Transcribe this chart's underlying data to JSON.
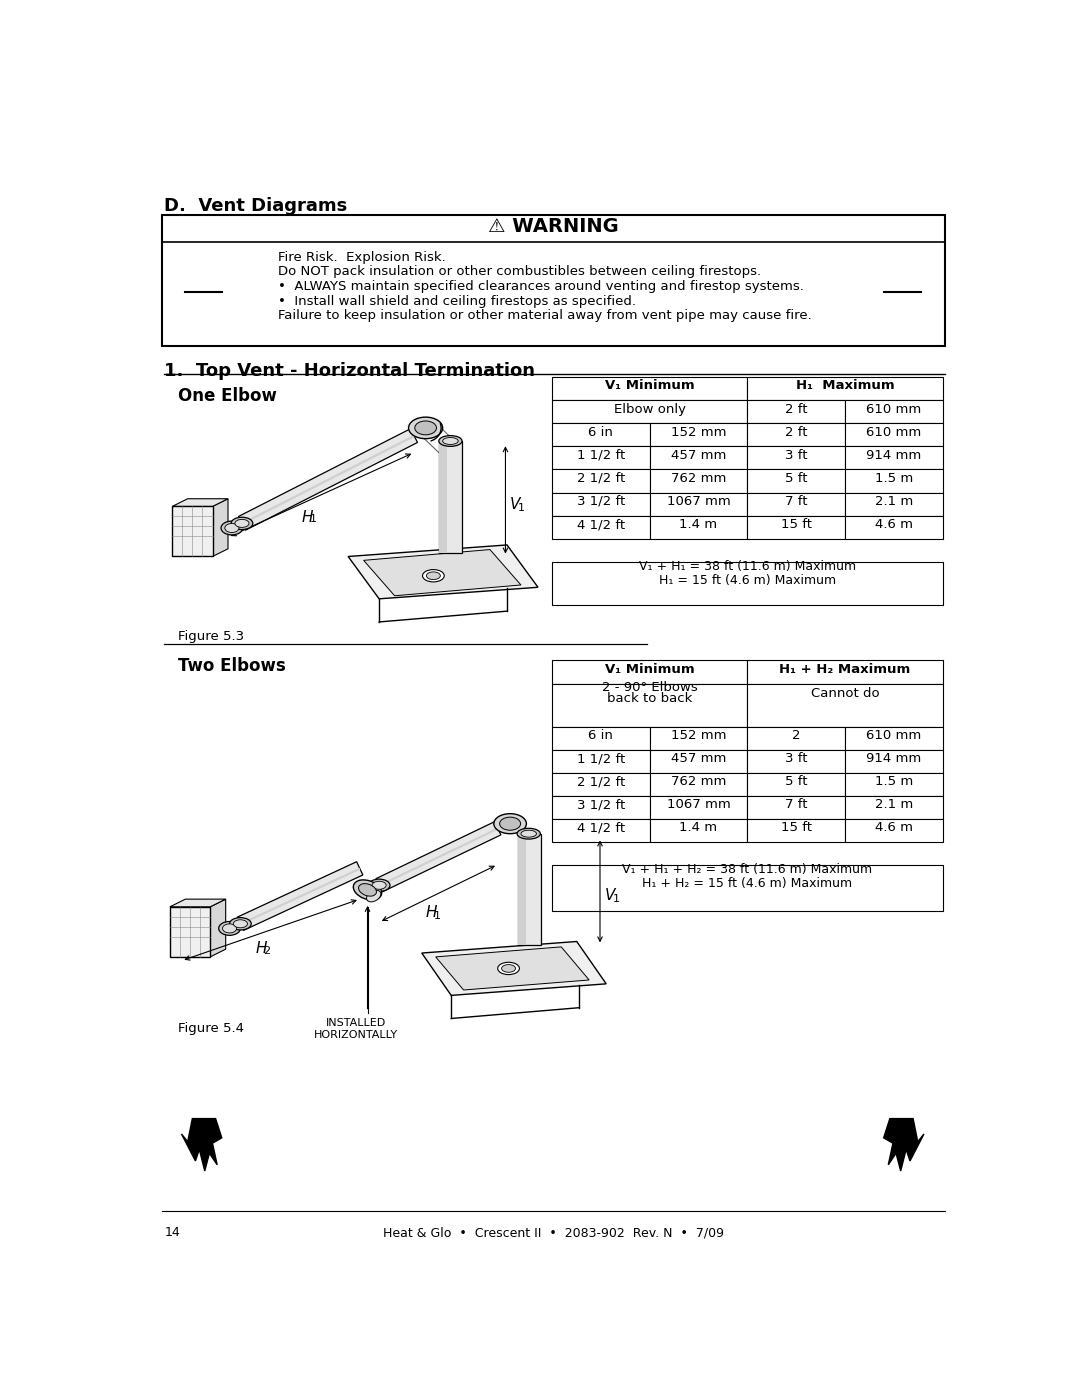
{
  "page_title": "D.  Vent Diagrams",
  "section_title": "1.  Top Vent - Horizontal Termination",
  "warning_title": "⚠ WARNING",
  "warning_lines": [
    "Fire Risk.  Explosion Risk.",
    "Do NOT pack insulation or other combustibles between ceiling firestops.",
    "•  ALWAYS maintain specified clearances around venting and firestop systems.",
    "•  Install wall shield and ceiling firestops as specified.",
    "Failure to keep insulation or other material away from vent pipe may cause fire."
  ],
  "one_elbow_label": "One Elbow",
  "two_elbows_label": "Two Elbows",
  "figure1_label": "Figure 5.3",
  "figure2_label": "Figure 5.4",
  "table1_rows": [
    [
      "Elbow only",
      "",
      "2 ft",
      "610 mm"
    ],
    [
      "6 in",
      "152 mm",
      "2 ft",
      "610 mm"
    ],
    [
      "1 1/2 ft",
      "457 mm",
      "3 ft",
      "914 mm"
    ],
    [
      "2 1/2 ft",
      "762 mm",
      "5 ft",
      "1.5 m"
    ],
    [
      "3 1/2 ft",
      "1067 mm",
      "7 ft",
      "2.1 m"
    ],
    [
      "4 1/2 ft",
      "1.4 m",
      "15 ft",
      "4.6 m"
    ]
  ],
  "table1_footer": [
    "V₁ + H₁ = 38 ft (11.6 m) Maximum",
    "H₁ = 15 ft (4.6 m) Maximum"
  ],
  "table2_rows": [
    [
      "6 in",
      "152 mm",
      "2",
      "610 mm"
    ],
    [
      "1 1/2 ft",
      "457 mm",
      "3 ft",
      "914 mm"
    ],
    [
      "2 1/2 ft",
      "762 mm",
      "5 ft",
      "1.5 m"
    ],
    [
      "3 1/2 ft",
      "1067 mm",
      "7 ft",
      "2.1 m"
    ],
    [
      "4 1/2 ft",
      "1.4 m",
      "15 ft",
      "4.6 m"
    ]
  ],
  "table2_footer": [
    "V₁ + H₁ + H₂ = 38 ft (11.6 m) Maximum",
    "H₁ + H₂ = 15 ft (4.6 m) Maximum"
  ],
  "footer_text": "Heat & Glo  •  Crescent II  •  2083-902  Rev. N  •  7/09",
  "page_number": "14",
  "installed_horizontally": "INSTALLED\nHORIZONTALLY",
  "bg_color": "#ffffff",
  "lw_table": 0.8,
  "lw_border": 1.5
}
